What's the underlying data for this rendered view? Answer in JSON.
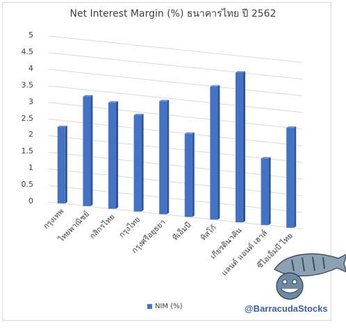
{
  "chart_data": {
    "type": "bar",
    "title": "Net Interest Margin (%) ธนาคารไทย ปี 2562",
    "categories": [
      "กรุงเทพ",
      "ไทยพาณิชย์",
      "กสิกรไทย",
      "กรุงไทย",
      "กรุงศรีอยุธยา",
      "ทีเอ็มบี",
      "ทิสโก้",
      "เกียรตินาคิน",
      "แลนด์ แอนด์ เฮาส์",
      "ซีไอเอ็มบี ไทย"
    ],
    "series": [
      {
        "name": "NIM (%)",
        "values": [
          2.3,
          3.3,
          3.2,
          2.9,
          3.4,
          2.5,
          4.0,
          4.5,
          2.0,
          3.0
        ],
        "color": "#4472c4"
      }
    ],
    "yticks": [
      "0",
      "0.5",
      "1",
      "1.5",
      "2",
      "2.5",
      "3",
      "3.5",
      "4",
      "4.5",
      "5"
    ],
    "ylim": [
      0,
      5
    ],
    "grid": true,
    "legend_position": "bottom"
  },
  "watermark": "@BarracudaStocks",
  "logo": "barracuda-fish-mascot"
}
